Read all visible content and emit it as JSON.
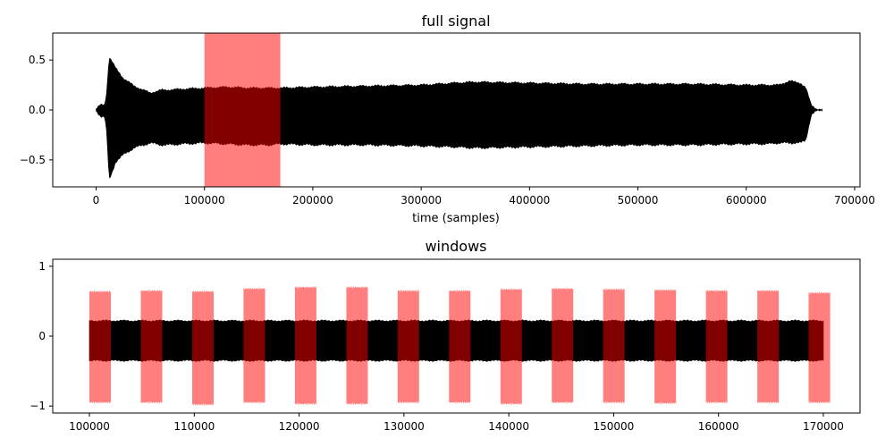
{
  "chart_data": [
    {
      "type": "line",
      "title": "full signal",
      "xlabel": "time (samples)",
      "ylabel": "",
      "xlim": [
        -40000,
        705000
      ],
      "ylim": [
        -0.77,
        0.77
      ],
      "xticks": [
        0,
        100000,
        200000,
        300000,
        400000,
        500000,
        600000,
        700000
      ],
      "xtick_labels": [
        "0",
        "100000",
        "200000",
        "300000",
        "400000",
        "500000",
        "600000",
        "700000"
      ],
      "yticks": [
        0.5,
        0.0,
        -0.5
      ],
      "ytick_labels": [
        "0.5",
        "0.0",
        "−0.5"
      ],
      "series": [
        {
          "color": "#000000",
          "style": "filled signal envelope",
          "x": [
            0,
            4000,
            8000,
            10000,
            12000,
            14000,
            18000,
            25000,
            35000,
            50000,
            60000,
            65000,
            80000,
            100000,
            120000,
            140000,
            160000,
            170000,
            200000,
            250000,
            300000,
            330000,
            350000,
            400000,
            450000,
            500000,
            550000,
            600000,
            620000,
            630000,
            640000,
            650000,
            655000,
            660000,
            665000,
            670000
          ],
          "upper": [
            0.01,
            0.05,
            0.05,
            0.2,
            0.53,
            0.5,
            0.42,
            0.32,
            0.24,
            0.17,
            0.2,
            0.2,
            0.21,
            0.22,
            0.23,
            0.22,
            0.22,
            0.22,
            0.23,
            0.24,
            0.25,
            0.27,
            0.28,
            0.27,
            0.26,
            0.26,
            0.26,
            0.25,
            0.25,
            0.25,
            0.29,
            0.27,
            0.22,
            0.05,
            0.01,
            0.0
          ],
          "lower": [
            -0.01,
            -0.06,
            -0.07,
            -0.25,
            -0.7,
            -0.65,
            -0.52,
            -0.45,
            -0.38,
            -0.33,
            -0.35,
            -0.35,
            -0.34,
            -0.33,
            -0.34,
            -0.35,
            -0.35,
            -0.34,
            -0.35,
            -0.35,
            -0.36,
            -0.37,
            -0.38,
            -0.37,
            -0.36,
            -0.35,
            -0.35,
            -0.34,
            -0.34,
            -0.33,
            -0.33,
            -0.33,
            -0.3,
            -0.05,
            -0.01,
            0.0
          ]
        }
      ],
      "highlight": {
        "x_range": [
          100000,
          170000
        ],
        "color": "#ff0000",
        "alpha": 0.5
      }
    },
    {
      "type": "line",
      "title": "windows",
      "xlabel": "",
      "ylabel": "",
      "xlim": [
        96500,
        173500
      ],
      "ylim": [
        -1.1,
        1.1
      ],
      "xticks": [
        100000,
        110000,
        120000,
        130000,
        140000,
        150000,
        160000,
        170000
      ],
      "xtick_labels": [
        "100000",
        "110000",
        "120000",
        "130000",
        "140000",
        "150000",
        "160000",
        "170000"
      ],
      "yticks": [
        1,
        0,
        -1
      ],
      "ytick_labels": [
        "1",
        "0",
        "−1"
      ],
      "series": [
        {
          "color": "#000000",
          "style": "filled signal band",
          "x_range": [
            100000,
            170000
          ],
          "upper": 0.22,
          "lower": -0.35
        }
      ],
      "windows": {
        "color": "#ff0000",
        "alpha": 0.5,
        "items": [
          {
            "start": 100000,
            "end": 102048,
            "max": 0.64,
            "min": -0.95
          },
          {
            "start": 104900,
            "end": 106948,
            "max": 0.65,
            "min": -0.95
          },
          {
            "start": 109800,
            "end": 111848,
            "max": 0.64,
            "min": -0.98
          },
          {
            "start": 114700,
            "end": 116748,
            "max": 0.68,
            "min": -0.95
          },
          {
            "start": 119600,
            "end": 121648,
            "max": 0.7,
            "min": -0.97
          },
          {
            "start": 124500,
            "end": 126548,
            "max": 0.7,
            "min": -0.97
          },
          {
            "start": 129400,
            "end": 131448,
            "max": 0.65,
            "min": -0.95
          },
          {
            "start": 134300,
            "end": 136348,
            "max": 0.65,
            "min": -0.95
          },
          {
            "start": 139200,
            "end": 141248,
            "max": 0.67,
            "min": -0.97
          },
          {
            "start": 144100,
            "end": 146148,
            "max": 0.68,
            "min": -0.95
          },
          {
            "start": 149000,
            "end": 151048,
            "max": 0.67,
            "min": -0.95
          },
          {
            "start": 153900,
            "end": 155948,
            "max": 0.66,
            "min": -0.96
          },
          {
            "start": 158800,
            "end": 160848,
            "max": 0.65,
            "min": -0.95
          },
          {
            "start": 163700,
            "end": 165748,
            "max": 0.65,
            "min": -0.95
          },
          {
            "start": 168600,
            "end": 170648,
            "max": 0.62,
            "min": -0.95
          }
        ]
      }
    }
  ]
}
